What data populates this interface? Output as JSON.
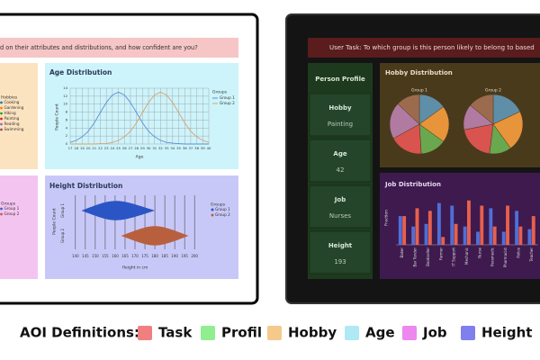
{
  "left_panel": {
    "task": "d on their attributes and distributions, and how confident are you?",
    "hobby_legend": {
      "title": "Hobbies",
      "items": [
        "Cooking",
        "Gardening",
        "Hiking",
        "Painting",
        "Reading",
        "Swimming"
      ],
      "colors": [
        "#1f77b4",
        "#ff7f0e",
        "#2ca02c",
        "#d62728",
        "#9467bd",
        "#8c564b"
      ]
    },
    "group_legend": {
      "title": "Groups",
      "items": [
        "Group 1",
        "Group 2"
      ],
      "colors": [
        "#3b5fd1",
        "#c0604a"
      ]
    },
    "age_chart": {
      "type": "line",
      "title": "Age Distribution",
      "y_label": "People Count",
      "x_label": "Age",
      "legend_title": "Groups",
      "grid": true,
      "x": [
        17,
        18,
        19,
        20,
        21,
        22,
        23,
        24,
        25,
        26,
        27,
        28,
        29,
        30,
        31,
        32,
        33,
        34,
        35,
        36,
        37,
        38,
        39,
        40
      ],
      "series": [
        {
          "name": "Group 1",
          "color": "#5b8fd6",
          "values": [
            0.4,
            0.9,
            1.8,
            3.2,
            5.3,
            7.9,
            10.4,
            12.3,
            13,
            12.3,
            10.4,
            7.9,
            5.3,
            3.2,
            1.8,
            0.9,
            0.4,
            0.2,
            0.1,
            0,
            0,
            0,
            0,
            0
          ]
        },
        {
          "name": "Group 2",
          "color": "#d4a373",
          "values": [
            0,
            0,
            0,
            0,
            0,
            0.1,
            0.1,
            0.4,
            0.9,
            1.8,
            3.2,
            5.3,
            7.9,
            10.4,
            12.3,
            13,
            12.3,
            10.4,
            7.9,
            5.3,
            3.2,
            1.8,
            0.9,
            0.4
          ]
        }
      ],
      "xlim": [
        17,
        40
      ],
      "xticks": [
        17,
        18,
        19,
        20,
        21,
        22,
        23,
        24,
        25,
        26,
        27,
        28,
        29,
        30,
        31,
        32,
        33,
        34,
        35,
        36,
        37,
        38,
        39,
        40
      ],
      "ylim": [
        0,
        14
      ],
      "yticks": [
        0,
        2,
        4,
        6,
        8,
        10,
        12,
        14
      ]
    },
    "height_chart": {
      "type": "violin",
      "title": "Height Distribution",
      "y_label": "People Count",
      "x_label": "Height in cm",
      "legend_title": "Groups",
      "categories": [
        "Group 1",
        "Group 2"
      ],
      "series": [
        {
          "name": "Group 1",
          "color": "#2b55c4",
          "min": 143,
          "median": 160,
          "max": 180
        },
        {
          "name": "Group 2",
          "color": "#b8603e",
          "min": 163,
          "median": 180,
          "max": 197
        }
      ],
      "xlim": [
        136,
        204
      ],
      "xticks": [
        140,
        145,
        150,
        155,
        160,
        165,
        170,
        175,
        180,
        185,
        190,
        195,
        200
      ]
    }
  },
  "right_panel": {
    "task": "User Task: To which group is this person likely to belong to based",
    "profile": {
      "title": "Person Profile",
      "fields": [
        {
          "label": "Hobby",
          "value": "Painting"
        },
        {
          "label": "Age",
          "value": 42
        },
        {
          "label": "Job",
          "value": "Nurses"
        },
        {
          "label": "Height",
          "value": 193
        }
      ]
    },
    "hobby_chart": {
      "type": "pie",
      "title": "Hobby Distribution",
      "categories": [
        "Cooking",
        "Gardening",
        "Hiking",
        "Painting",
        "Reading",
        "Swimming"
      ],
      "colors": [
        "#5f8fa8",
        "#e8943a",
        "#6aa84f",
        "#d9534f",
        "#b07aa1",
        "#9c6b4e"
      ],
      "series": [
        {
          "name": "Group 1",
          "values": [
            15,
            20,
            14,
            18,
            20,
            13
          ]
        },
        {
          "name": "Group 2",
          "values": [
            18,
            22,
            12,
            20,
            14,
            14
          ]
        }
      ]
    },
    "job_chart": {
      "type": "bar",
      "title": "Job Distribution",
      "y_label": "Fraction",
      "categories": [
        "Baker",
        "Bar Tender",
        "Bookseller",
        "Farmer",
        "IT Support",
        "Mechanic",
        "Nurse",
        "Paramedic",
        "Pharmacist",
        "Police",
        "Teacher"
      ],
      "series": [
        {
          "name": "Group 1",
          "color": "#4f6fd8",
          "values": [
            0.55,
            0.35,
            0.4,
            0.8,
            0.75,
            0.35,
            0.25,
            0.7,
            0.25,
            0.65,
            0.3
          ]
        },
        {
          "name": "Group 2",
          "color": "#e8604c",
          "values": [
            0.55,
            0.7,
            0.65,
            0.15,
            0.4,
            0.85,
            0.75,
            0.35,
            0.75,
            0.35,
            0.55
          ]
        }
      ],
      "ylim": [
        0,
        1
      ]
    }
  },
  "legend": {
    "title": "AOI Definitions:",
    "items": [
      {
        "label": "Task",
        "color": "#f08080"
      },
      {
        "label": "Profil",
        "color": "#90ee90"
      },
      {
        "label": "Hobby",
        "color": "#f5c98c"
      },
      {
        "label": "Age",
        "color": "#aee9f5"
      },
      {
        "label": "Job",
        "color": "#ee88ee"
      },
      {
        "label": "Height",
        "color": "#7f7fee"
      }
    ]
  }
}
